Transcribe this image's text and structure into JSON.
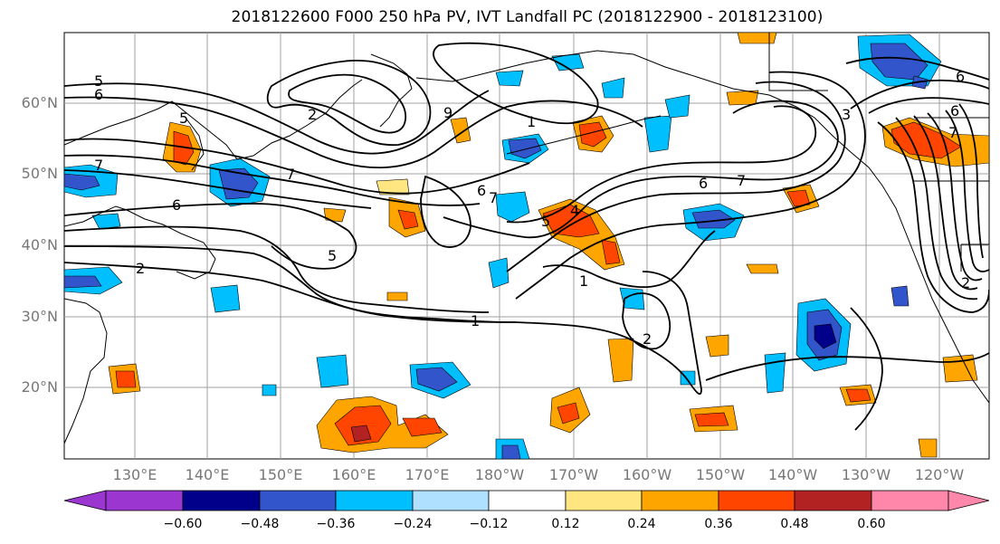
{
  "title": "2018122600 F000 250 hPa PV, IVT Landfall PC (2018122900 - 2018123100)",
  "lat_labels": [
    "60°N",
    "50°N",
    "40°N",
    "30°N",
    "20°N"
  ],
  "lon_labels": [
    "130°E",
    "140°E",
    "150°E",
    "160°E",
    "170°E",
    "180°W",
    "170°W",
    "160°W",
    "150°W",
    "140°W",
    "130°W",
    "120°W"
  ],
  "colorbar": {
    "ticks": [
      "−0.60",
      "−0.48",
      "−0.36",
      "−0.24",
      "−0.12",
      "0.12",
      "0.24",
      "0.36",
      "0.48",
      "0.60"
    ],
    "colors": [
      "#9b36d1",
      "#00008b",
      "#3355cc",
      "#00bfff",
      "#b0e0ff",
      "#ffffff",
      "#ffe680",
      "#ffa500",
      "#ff4500",
      "#b22222",
      "#ff88aa"
    ]
  },
  "contour_labels": [
    {
      "text": "5"
    },
    {
      "text": "6"
    },
    {
      "text": "5"
    },
    {
      "text": "7"
    },
    {
      "text": "6"
    },
    {
      "text": "7"
    },
    {
      "text": "5"
    },
    {
      "text": "2"
    },
    {
      "text": "2"
    },
    {
      "text": "9"
    },
    {
      "text": "1"
    },
    {
      "text": "6"
    },
    {
      "text": "7"
    },
    {
      "text": "5"
    },
    {
      "text": "4"
    },
    {
      "text": "6"
    },
    {
      "text": "7"
    },
    {
      "text": "1"
    },
    {
      "text": "1"
    },
    {
      "text": "2"
    },
    {
      "text": "6"
    },
    {
      "text": "6"
    },
    {
      "text": "7"
    },
    {
      "text": "3"
    },
    {
      "text": "2"
    }
  ]
}
